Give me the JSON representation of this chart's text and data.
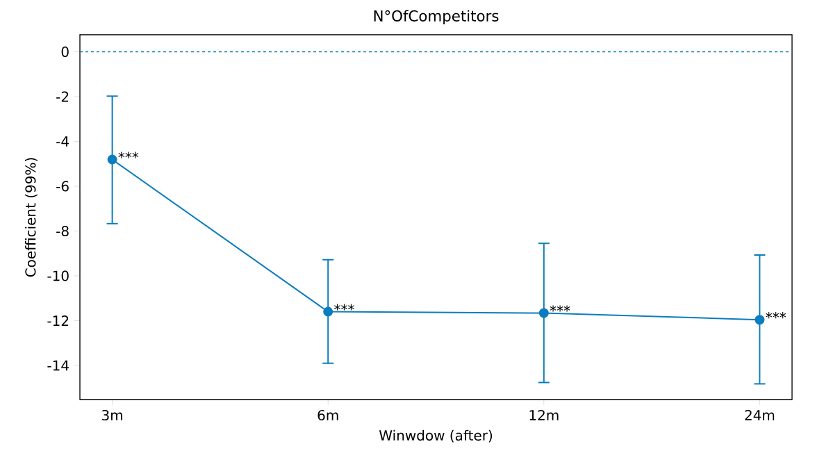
{
  "chart_data": {
    "type": "line",
    "title": "N°OfCompetitors",
    "xlabel": "Winwdow (after)",
    "ylabel": "Coefficient (99%)",
    "categories": [
      "3m",
      "6m",
      "12m",
      "24m"
    ],
    "series": [
      {
        "color": "#0a7dbf",
        "values": [
          -4.81,
          -11.6,
          -11.66,
          -11.96
        ],
        "errors": [
          [
            -7.67,
            -1.98
          ],
          [
            -13.9,
            -9.28
          ],
          [
            -14.76,
            -8.55
          ],
          [
            -14.82,
            -9.07
          ]
        ]
      }
    ],
    "ylim": [
      -15.52,
      0.76
    ],
    "yticks": [
      0,
      -2,
      -4,
      -6,
      -8,
      -10,
      -12,
      -14
    ],
    "marker": "circle",
    "line_style": "solid",
    "ref_lines": [
      {
        "axis": "y",
        "value": 0,
        "color": "#0a7dbf",
        "line_style": "dashed"
      }
    ],
    "annotations": [
      {
        "text": "***",
        "x": "3m",
        "y": -4.81
      },
      {
        "text": "***",
        "x": "6m",
        "y": -11.6
      },
      {
        "text": "***",
        "x": "12m",
        "y": -11.66
      },
      {
        "text": "***",
        "x": "24m",
        "y": -11.96
      }
    ]
  }
}
